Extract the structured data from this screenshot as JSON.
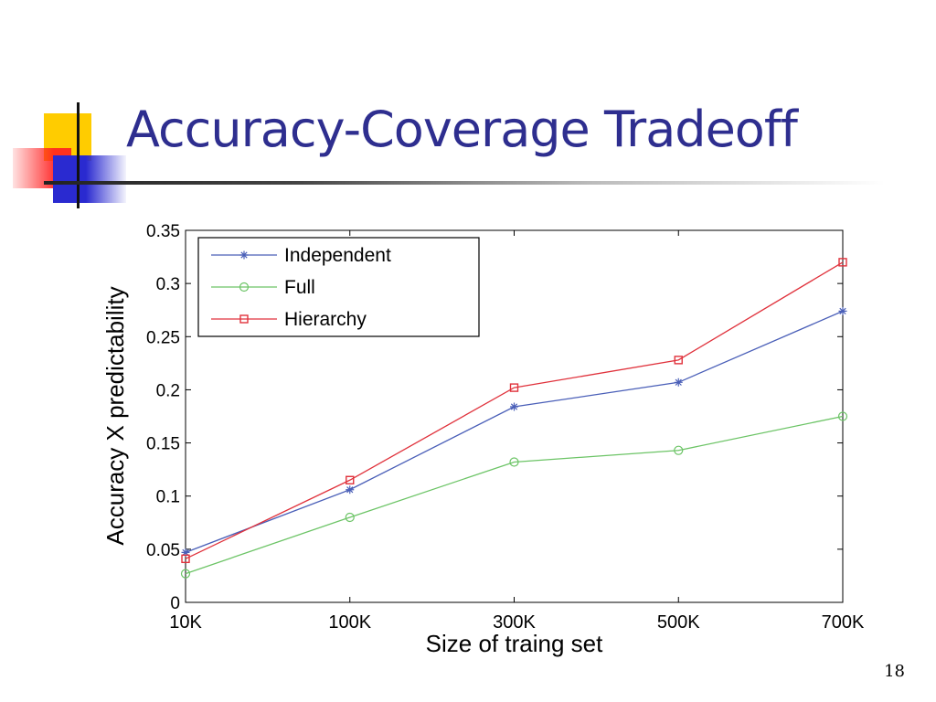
{
  "slide": {
    "title": "Accuracy-Coverage Tradeoff",
    "page_number": "18"
  },
  "chart_data": {
    "type": "line",
    "title": "",
    "xlabel": "Size of traing set",
    "ylabel": "Accuracy X predictability",
    "categories": [
      "10K",
      "100K",
      "300K",
      "500K",
      "700K"
    ],
    "ylim": [
      0,
      0.35
    ],
    "yticks": [
      "0",
      "0.05",
      "0.1",
      "0.15",
      "0.2",
      "0.25",
      "0.3",
      "0.35"
    ],
    "legend_position": "top-left",
    "grid": false,
    "series": [
      {
        "name": "Independent",
        "color": "#4a5fb8",
        "marker": "asterisk",
        "values": [
          0.047,
          0.106,
          0.184,
          0.207,
          0.274
        ]
      },
      {
        "name": "Full",
        "color": "#6cc466",
        "marker": "circle",
        "values": [
          0.027,
          0.08,
          0.132,
          0.143,
          0.175
        ]
      },
      {
        "name": "Hierarchy",
        "color": "#e0323c",
        "marker": "square",
        "values": [
          0.041,
          0.115,
          0.202,
          0.228,
          0.32
        ]
      }
    ]
  }
}
